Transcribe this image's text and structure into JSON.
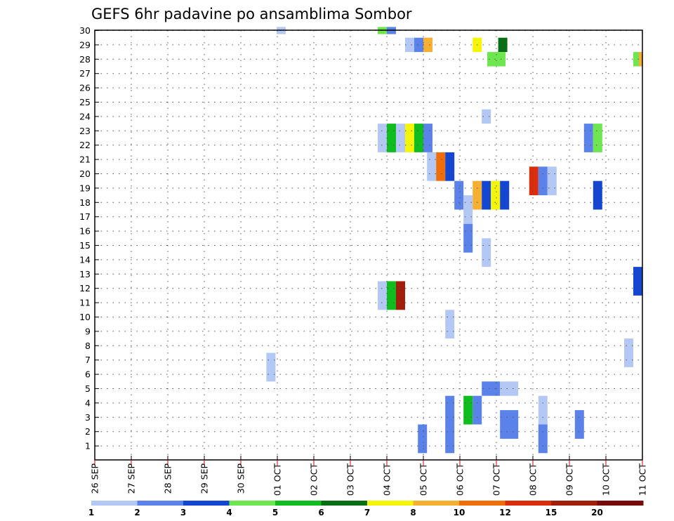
{
  "chart_data": {
    "type": "heatmap",
    "title": "GEFS 6hr padavine po ansamblima Sombor",
    "xlabel": "",
    "ylabel": "",
    "x_ticks": [
      "26 SEP",
      "27 SEP",
      "28 SEP",
      "29 SEP",
      "30 SEP",
      "01 OCT",
      "02 OCT",
      "03 OCT",
      "04 OCT",
      "05 OCT",
      "06 OCT",
      "07 OCT",
      "08 OCT",
      "09 OCT",
      "10 OCT",
      "11 OCT"
    ],
    "y_ticks": [
      "1",
      "2",
      "3",
      "4",
      "5",
      "6",
      "7",
      "8",
      "9",
      "10",
      "11",
      "12",
      "13",
      "14",
      "15",
      "16",
      "17",
      "18",
      "19",
      "20",
      "21",
      "22",
      "23",
      "24",
      "25",
      "26",
      "27",
      "28",
      "29",
      "30"
    ],
    "xlim": [
      0,
      15
    ],
    "ylim": [
      0.5,
      30
    ],
    "grid": true,
    "colorbar": {
      "labels": [
        "1",
        "2",
        "3",
        "4",
        "5",
        "6",
        "7",
        "8",
        "10",
        "12",
        "15",
        "20"
      ],
      "colors": [
        "#b4c8f5",
        "#5a82e8",
        "#1446d2",
        "#6ee650",
        "#0fbe1e",
        "#0a6e14",
        "#f5f50a",
        "#f5af32",
        "#f06e0a",
        "#dc2d0a",
        "#a01e0a",
        "#780a0a"
      ]
    },
    "cells": [
      {
        "x": 4.98,
        "y": 30,
        "level": 1,
        "width": 0.25,
        "height": 0.5
      },
      {
        "x": 7.75,
        "y": 30,
        "level": 4,
        "width": 0.25,
        "height": 0.5
      },
      {
        "x": 8,
        "y": 30,
        "level": 2,
        "width": 0.25,
        "height": 0.5
      },
      {
        "x": 8.5,
        "y": 29,
        "level": 1
      },
      {
        "x": 8.75,
        "y": 29,
        "level": 2
      },
      {
        "x": 9,
        "y": 29,
        "level": 8
      },
      {
        "x": 10.35,
        "y": 29,
        "level": 7
      },
      {
        "x": 11.05,
        "y": 29,
        "level": 6
      },
      {
        "x": 10.75,
        "y": 28,
        "level": 4,
        "width": 0.5
      },
      {
        "x": 14.75,
        "y": 28,
        "level": 4
      },
      {
        "x": 14.9,
        "y": 28,
        "level": 8,
        "width": 0.1
      },
      {
        "x": 10.6,
        "y": 24,
        "level": 1
      },
      {
        "x": 7.75,
        "y": 22.5,
        "level": 1,
        "height": 2
      },
      {
        "x": 8,
        "y": 22.5,
        "level": 5,
        "height": 2
      },
      {
        "x": 8.25,
        "y": 22.5,
        "level": 1,
        "height": 2
      },
      {
        "x": 8.5,
        "y": 22.5,
        "level": 7,
        "height": 2
      },
      {
        "x": 8.75,
        "y": 22.5,
        "level": 5,
        "height": 2
      },
      {
        "x": 9,
        "y": 22.5,
        "level": 2,
        "height": 2
      },
      {
        "x": 13.4,
        "y": 22.5,
        "level": 2,
        "height": 2
      },
      {
        "x": 13.65,
        "y": 22.5,
        "level": 4,
        "height": 2
      },
      {
        "x": 9.1,
        "y": 20.5,
        "level": 1,
        "height": 2
      },
      {
        "x": 9.35,
        "y": 20.5,
        "level": 9,
        "height": 2
      },
      {
        "x": 9.6,
        "y": 20.5,
        "level": 3,
        "height": 2
      },
      {
        "x": 11.9,
        "y": 19.5,
        "level": 10,
        "height": 2
      },
      {
        "x": 12.15,
        "y": 19.5,
        "level": 2,
        "height": 2
      },
      {
        "x": 12.4,
        "y": 19.5,
        "level": 1,
        "height": 2
      },
      {
        "x": 9.85,
        "y": 18.5,
        "level": 2,
        "height": 2
      },
      {
        "x": 10.35,
        "y": 18.5,
        "level": 8,
        "height": 2
      },
      {
        "x": 10.6,
        "y": 18.5,
        "level": 3,
        "height": 2
      },
      {
        "x": 10.85,
        "y": 18.5,
        "level": 7,
        "height": 2
      },
      {
        "x": 11.1,
        "y": 18.5,
        "level": 3,
        "height": 2
      },
      {
        "x": 13.65,
        "y": 18.5,
        "level": 3,
        "height": 2
      },
      {
        "x": 10.1,
        "y": 17.5,
        "level": 1,
        "height": 2
      },
      {
        "x": 10.1,
        "y": 15.5,
        "level": 2,
        "height": 2
      },
      {
        "x": 10.6,
        "y": 14.5,
        "level": 1,
        "height": 2
      },
      {
        "x": 14.75,
        "y": 12.5,
        "level": 3,
        "height": 2
      },
      {
        "x": 7.75,
        "y": 11.5,
        "level": 1,
        "height": 2
      },
      {
        "x": 8,
        "y": 11.5,
        "level": 5,
        "height": 2
      },
      {
        "x": 8.25,
        "y": 11.5,
        "level": 11,
        "height": 2
      },
      {
        "x": 9.6,
        "y": 9.5,
        "level": 1,
        "height": 2
      },
      {
        "x": 14.5,
        "y": 7.5,
        "level": 1,
        "height": 2
      },
      {
        "x": 4.7,
        "y": 6.5,
        "level": 1,
        "height": 2
      },
      {
        "x": 10.6,
        "y": 5,
        "level": 2,
        "width": 0.5
      },
      {
        "x": 11.1,
        "y": 5,
        "level": 1,
        "width": 0.5
      },
      {
        "x": 9.6,
        "y": 3.5,
        "level": 2,
        "height": 2
      },
      {
        "x": 10.1,
        "y": 3.5,
        "level": 5,
        "height": 2
      },
      {
        "x": 10.35,
        "y": 3.5,
        "level": 2,
        "height": 2
      },
      {
        "x": 12.15,
        "y": 3.5,
        "level": 1,
        "height": 2
      },
      {
        "x": 11.1,
        "y": 2.5,
        "level": 2,
        "width": 0.5,
        "height": 2
      },
      {
        "x": 13.15,
        "y": 2.5,
        "level": 2,
        "height": 2
      },
      {
        "x": 8.85,
        "y": 1.5,
        "level": 2,
        "height": 2
      },
      {
        "x": 9.6,
        "y": 1.5,
        "level": 2,
        "height": 2
      },
      {
        "x": 12.15,
        "y": 1.5,
        "level": 2,
        "height": 2
      }
    ]
  }
}
